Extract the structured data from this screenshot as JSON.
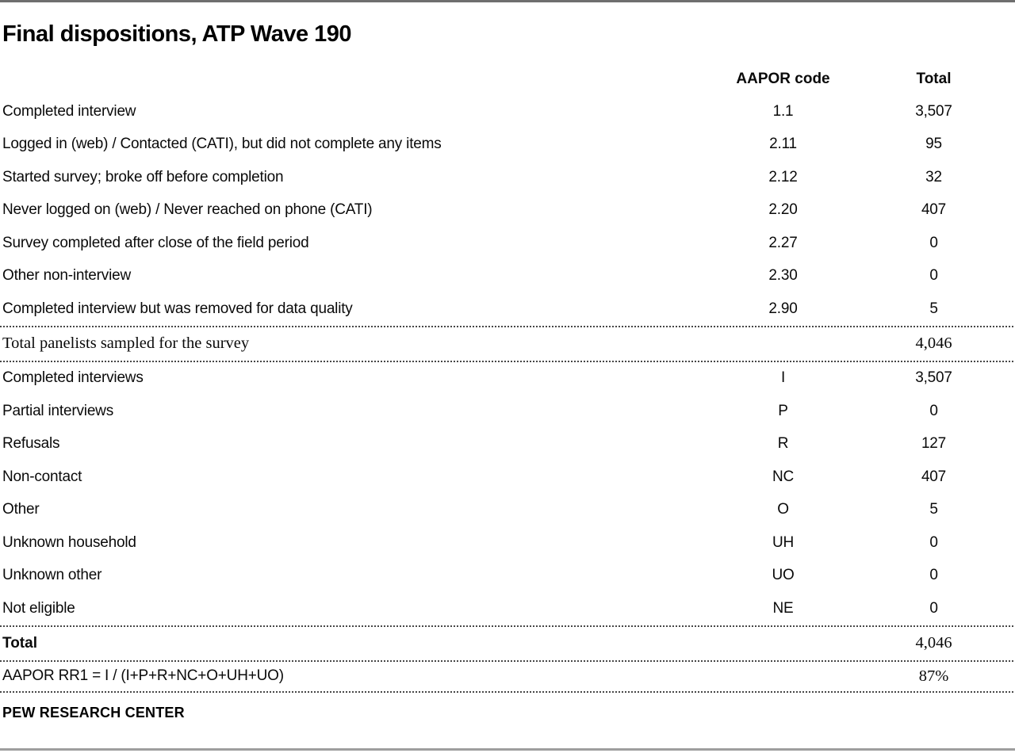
{
  "chart_data": {
    "type": "table",
    "title": "Final dispositions, ATP Wave 190",
    "header": {
      "code": "AAPOR code",
      "total": "Total"
    },
    "section1": [
      {
        "label": "Completed interview",
        "code": "1.1",
        "total": "3,507"
      },
      {
        "label": "Logged in (web) / Contacted (CATI), but did not complete any items",
        "code": "2.11",
        "total": "95"
      },
      {
        "label": "Started survey; broke off before completion",
        "code": "2.12",
        "total": "32"
      },
      {
        "label": "Never logged on (web) / Never reached on phone (CATI)",
        "code": "2.20",
        "total": "407"
      },
      {
        "label": "Survey completed after close of the field period",
        "code": "2.27",
        "total": "0"
      },
      {
        "label": "Other non-interview",
        "code": "2.30",
        "total": "0"
      },
      {
        "label": "Completed interview but was removed for data quality",
        "code": "2.90",
        "total": "5"
      }
    ],
    "summary_row": {
      "label": "Total panelists sampled for the survey",
      "code": "",
      "total": "4,046"
    },
    "section2": [
      {
        "label": "Completed interviews",
        "code": "I",
        "total": "3,507"
      },
      {
        "label": "Partial interviews",
        "code": "P",
        "total": "0"
      },
      {
        "label": "Refusals",
        "code": "R",
        "total": "127"
      },
      {
        "label": "Non-contact",
        "code": "NC",
        "total": "407"
      },
      {
        "label": "Other",
        "code": "O",
        "total": "5"
      },
      {
        "label": "Unknown household",
        "code": "UH",
        "total": "0"
      },
      {
        "label": "Unknown other",
        "code": "UO",
        "total": "0"
      },
      {
        "label": "Not eligible",
        "code": "NE",
        "total": "0"
      }
    ],
    "total_row": {
      "label": "Total",
      "code": "",
      "total": "4,046"
    },
    "rr1_row": {
      "label": "AAPOR RR1 = I / (I+P+R+NC+O+UH+UO)",
      "code": "",
      "total": "87%"
    },
    "layout": {
      "grid": "off",
      "legend": "none"
    }
  },
  "footer": {
    "label": "PEW RESEARCH CENTER"
  },
  "colors": {
    "text": "#000000",
    "top_rule": "#6e6e6e",
    "bottom_rule": "#9e9e9e",
    "dotted_rule": "#474747",
    "background": "#ffffff"
  }
}
